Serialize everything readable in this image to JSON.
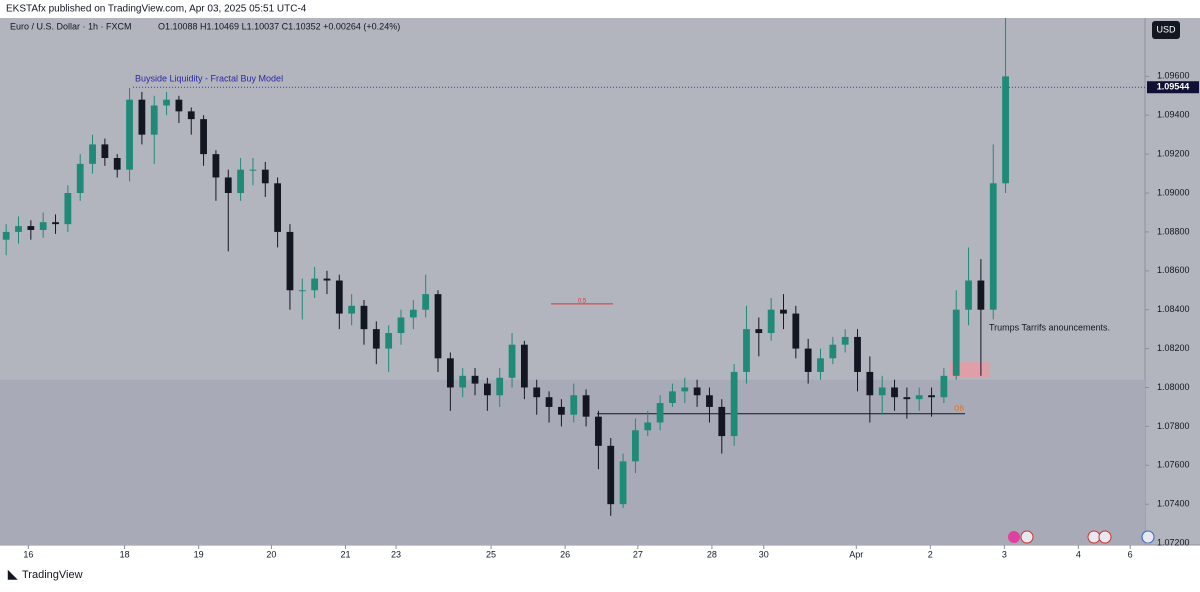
{
  "header": {
    "text": "EKSTAfx published on TradingView.com, Apr 03, 2025 05:51 UTC-4"
  },
  "footer": {
    "brand": "TradingView"
  },
  "chart_data": {
    "type": "candlestick",
    "title": "Euro / U.S. Dollar · 1h · FXCM",
    "ohlc_label": "O1.10088 H1.10469 L1.10037 C1.10352 +0.00264 (+0.24%)",
    "currency": "USD",
    "up_color": "#1f8a78",
    "down_color": "#131722",
    "open": [
      1.0876,
      1.088,
      1.0883,
      1.0881,
      1.0885,
      1.0884,
      1.09,
      1.0915,
      1.0925,
      1.0918,
      1.0912,
      1.0948,
      1.093,
      1.0945,
      1.0948,
      1.0942,
      1.0938,
      1.092,
      1.0908,
      1.09,
      1.0912,
      1.0912,
      1.0905,
      1.088,
      1.085,
      1.085,
      1.0856,
      1.0855,
      1.0838,
      1.0842,
      1.083,
      1.082,
      1.0828,
      1.0836,
      1.084,
      1.0848,
      1.0815,
      1.08,
      1.0806,
      1.0802,
      1.0796,
      1.0805,
      1.0822,
      1.08,
      1.0795,
      1.079,
      1.0786,
      1.0796,
      1.0785,
      1.077,
      1.074,
      1.0762,
      1.0778,
      1.0782,
      1.0792,
      1.0798,
      1.08,
      1.0796,
      1.079,
      1.0775,
      1.0808,
      1.083,
      1.0828,
      1.084,
      1.0838,
      1.082,
      1.0808,
      1.0815,
      1.0822,
      1.0826,
      1.0808,
      1.0796,
      1.08,
      1.0795,
      1.0794,
      1.0796,
      1.0795,
      1.0806,
      1.084,
      1.0855,
      1.084,
      1.0905
    ],
    "high": [
      1.0884,
      1.0888,
      1.0886,
      1.089,
      1.0889,
      1.0904,
      1.092,
      1.093,
      1.0928,
      1.092,
      1.0954,
      1.0952,
      1.095,
      1.0952,
      1.095,
      1.0944,
      1.094,
      1.0922,
      1.0912,
      1.0918,
      1.0918,
      1.0916,
      1.0908,
      1.0884,
      1.0856,
      1.0862,
      1.086,
      1.0858,
      1.0848,
      1.0845,
      1.0834,
      1.0832,
      1.084,
      1.0845,
      1.0858,
      1.085,
      1.0818,
      1.081,
      1.081,
      1.0805,
      1.081,
      1.0828,
      1.0824,
      1.0804,
      1.0798,
      1.0794,
      1.0802,
      1.0799,
      1.0788,
      1.0774,
      1.0766,
      1.0784,
      1.0788,
      1.0796,
      1.0802,
      1.0805,
      1.0804,
      1.08,
      1.0794,
      1.0812,
      1.0842,
      1.0836,
      1.0846,
      1.0848,
      1.0842,
      1.0825,
      1.082,
      1.0826,
      1.083,
      1.083,
      1.0816,
      1.0806,
      1.0804,
      1.08,
      1.08,
      1.08,
      1.081,
      1.085,
      1.0872,
      1.0866,
      1.0925,
      1.099
    ],
    "low": [
      1.0868,
      1.0874,
      1.0876,
      1.0877,
      1.0879,
      1.088,
      1.0896,
      1.091,
      1.0914,
      1.0908,
      1.0906,
      1.0925,
      1.0915,
      1.094,
      1.0936,
      1.093,
      1.0914,
      1.0896,
      1.087,
      1.0896,
      1.0904,
      1.0898,
      1.0872,
      1.084,
      1.0835,
      1.0846,
      1.0848,
      1.083,
      1.0832,
      1.0822,
      1.0812,
      1.0808,
      1.0822,
      1.083,
      1.0836,
      1.0808,
      1.0788,
      1.0795,
      1.0796,
      1.0788,
      1.079,
      1.08,
      1.0794,
      1.0786,
      1.0782,
      1.078,
      1.0782,
      1.078,
      1.0758,
      1.0734,
      1.0738,
      1.0756,
      1.0775,
      1.0778,
      1.079,
      1.0792,
      1.079,
      1.0782,
      1.0766,
      1.077,
      1.0802,
      1.0816,
      1.0824,
      1.083,
      1.0815,
      1.0802,
      1.0804,
      1.0812,
      1.0818,
      1.0798,
      1.0782,
      1.0786,
      1.0788,
      1.0784,
      1.0788,
      1.0785,
      1.0792,
      1.0804,
      1.0832,
      1.0806,
      1.0835,
      1.09
    ],
    "close": [
      1.088,
      1.0883,
      1.0881,
      1.0885,
      1.0884,
      1.09,
      1.0915,
      1.0925,
      1.0918,
      1.0912,
      1.0948,
      1.093,
      1.0945,
      1.0948,
      1.0942,
      1.0938,
      1.092,
      1.0908,
      1.09,
      1.0912,
      1.0912,
      1.0905,
      1.088,
      1.085,
      1.085,
      1.0856,
      1.0855,
      1.0838,
      1.0842,
      1.083,
      1.082,
      1.0828,
      1.0836,
      1.084,
      1.0848,
      1.0815,
      1.08,
      1.0806,
      1.0802,
      1.0796,
      1.0805,
      1.0822,
      1.08,
      1.0795,
      1.079,
      1.0786,
      1.0796,
      1.0785,
      1.077,
      1.074,
      1.0762,
      1.0778,
      1.0782,
      1.0792,
      1.0798,
      1.08,
      1.0796,
      1.079,
      1.0775,
      1.0808,
      1.083,
      1.0828,
      1.084,
      1.0838,
      1.082,
      1.0808,
      1.0815,
      1.0822,
      1.0826,
      1.0808,
      1.0796,
      1.08,
      1.0795,
      1.0794,
      1.0796,
      1.0795,
      1.0806,
      1.084,
      1.0855,
      1.084,
      1.0905,
      1.096
    ],
    "xlim": [
      -0.5,
      92.3
    ],
    "xticks": [
      {
        "value": 1.8,
        "label": "16"
      },
      {
        "value": 9.6,
        "label": "18"
      },
      {
        "value": 15.6,
        "label": "19"
      },
      {
        "value": 21.5,
        "label": "20"
      },
      {
        "value": 27.5,
        "label": "21"
      },
      {
        "value": 31.6,
        "label": "23"
      },
      {
        "value": 39.3,
        "label": "25"
      },
      {
        "value": 45.3,
        "label": "26"
      },
      {
        "value": 51.2,
        "label": "27"
      },
      {
        "value": 57.2,
        "label": "28"
      },
      {
        "value": 61.4,
        "label": "30"
      },
      {
        "value": 68.9,
        "label": "Apr"
      },
      {
        "value": 74.9,
        "label": "2"
      },
      {
        "value": 80.9,
        "label": "3"
      },
      {
        "value": 86.9,
        "label": "4"
      },
      {
        "value": 91.1,
        "label": "6"
      }
    ],
    "ylim": [
      1.0719,
      1.099
    ],
    "yticks": [
      {
        "value": 1.072,
        "label": "1.07200"
      },
      {
        "value": 1.074,
        "label": "1.07400"
      },
      {
        "value": 1.076,
        "label": "1.07600"
      },
      {
        "value": 1.078,
        "label": "1.07800"
      },
      {
        "value": 1.08,
        "label": "1.08000"
      },
      {
        "value": 1.082,
        "label": "1.08200"
      },
      {
        "value": 1.084,
        "label": "1.08400"
      },
      {
        "value": 1.086,
        "label": "1.08600"
      },
      {
        "value": 1.088,
        "label": "1.08800"
      },
      {
        "value": 1.09,
        "label": "1.09000"
      },
      {
        "value": 1.092,
        "label": "1.09200"
      },
      {
        "value": 1.094,
        "label": "1.09400"
      },
      {
        "value": 1.096,
        "label": "1.09600"
      }
    ],
    "shaded_below": 1.0804,
    "liquidity": {
      "label": "Buyside Liquidity - Fractal Buy Model",
      "level": 1.09544
    },
    "fib": {
      "label": "0.5",
      "level": 1.0843
    },
    "order_block": {
      "label": "OB",
      "level": 1.07865
    },
    "zone": {
      "bottom": 1.0805,
      "top": 1.0813
    },
    "note": "Trumps Tarrifs anouncements."
  }
}
